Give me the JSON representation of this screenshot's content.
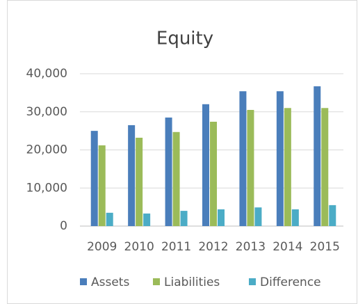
{
  "chart_data": {
    "type": "bar",
    "title": "Equity",
    "categories": [
      "2009",
      "2010",
      "2011",
      "2012",
      "2013",
      "2014",
      "2015"
    ],
    "series": [
      {
        "name": "Assets",
        "color": "#4a7ebb",
        "values": [
          25000,
          26500,
          28500,
          32000,
          35400,
          35400,
          36700
        ]
      },
      {
        "name": "Liabilities",
        "color": "#9bbb59",
        "values": [
          21200,
          23200,
          24700,
          27400,
          30500,
          31000,
          31000
        ]
      },
      {
        "name": "Difference",
        "color": "#4bacc6",
        "values": [
          3500,
          3300,
          4000,
          4400,
          4900,
          4400,
          5500
        ]
      }
    ],
    "ylim": [
      0,
      40000
    ],
    "yticks": [
      0,
      {
        "value": 10000,
        "label": "10,000"
      },
      {
        "value": 20000,
        "label": "20,000"
      },
      {
        "value": 30000,
        "label": "30,000"
      },
      {
        "value": 40000,
        "label": "40,000"
      }
    ],
    "grid": true,
    "legend": "bottom"
  }
}
